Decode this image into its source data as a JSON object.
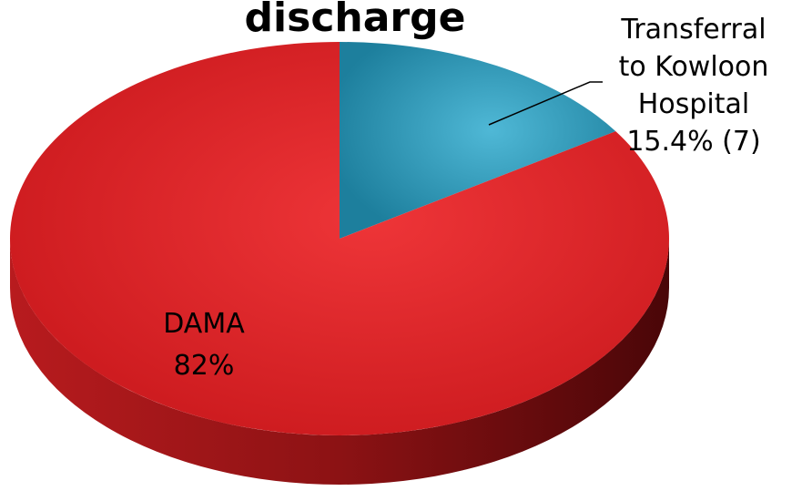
{
  "chart_data": {
    "type": "pie",
    "title": "discharge",
    "slices": [
      {
        "label_lines": [
          "Transferral",
          "to Kowloon",
          "Hospital",
          "15.4% (7)"
        ],
        "value": 15.4,
        "color": "#2f9fbf"
      },
      {
        "label_lines": [
          "DAMA",
          "82%"
        ],
        "value": 82,
        "color": "#e3262a"
      }
    ],
    "style": "3d"
  }
}
